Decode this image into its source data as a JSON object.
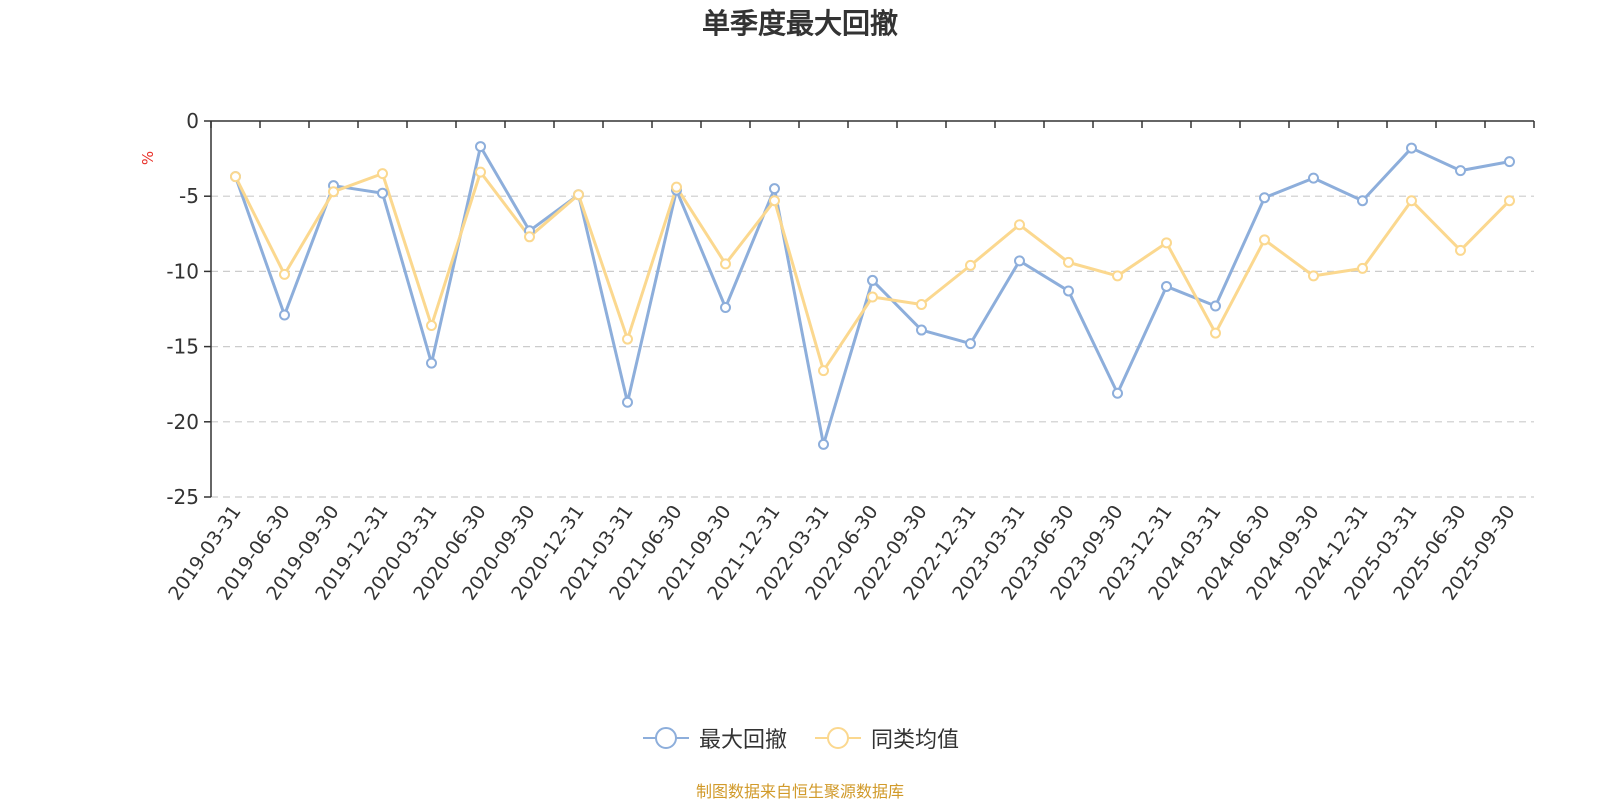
{
  "chart_data": {
    "type": "line",
    "title": "单季度最大回撤",
    "ylabel": "%",
    "xlabel": "",
    "ylim": [
      -25,
      0
    ],
    "yticks": [
      0,
      -5,
      -10,
      -15,
      -20,
      -25
    ],
    "grid": true,
    "legend_position": "bottom",
    "categories": [
      "2019-03-31",
      "2019-06-30",
      "2019-09-30",
      "2019-12-31",
      "2020-03-31",
      "2020-06-30",
      "2020-09-30",
      "2020-12-31",
      "2021-03-31",
      "2021-06-30",
      "2021-09-30",
      "2021-12-31",
      "2022-03-31",
      "2022-06-30",
      "2022-09-30",
      "2022-12-31",
      "2023-03-31",
      "2023-06-30",
      "2023-09-30",
      "2023-12-31",
      "2024-03-31",
      "2024-06-30",
      "2024-09-30",
      "2024-12-31",
      "2025-03-31",
      "2025-06-30",
      "2025-09-30"
    ],
    "series": [
      {
        "name": "最大回撤",
        "color": "#8daedb",
        "values": [
          -3.7,
          -12.9,
          -4.3,
          -4.8,
          -16.1,
          -1.7,
          -7.3,
          -4.9,
          -18.7,
          -4.6,
          -12.4,
          -4.5,
          -21.5,
          -10.6,
          -13.9,
          -14.8,
          -9.3,
          -11.3,
          -18.1,
          -11.0,
          -12.3,
          -5.1,
          -3.8,
          -5.3,
          -1.8,
          -3.3,
          -2.7
        ]
      },
      {
        "name": "同类均值",
        "color": "#fbd88f",
        "values": [
          -3.7,
          -10.2,
          -4.7,
          -3.5,
          -13.6,
          -3.4,
          -7.7,
          -4.9,
          -14.5,
          -4.4,
          -9.5,
          -5.3,
          -16.6,
          -11.7,
          -12.2,
          -9.6,
          -6.9,
          -9.4,
          -10.3,
          -8.1,
          -14.1,
          -7.9,
          -10.3,
          -9.8,
          -5.3,
          -8.6,
          -5.3
        ]
      }
    ]
  },
  "legend": {
    "item1": "最大回撤",
    "item2": "同类均值"
  },
  "source": "制图数据来自恒生聚源数据库"
}
